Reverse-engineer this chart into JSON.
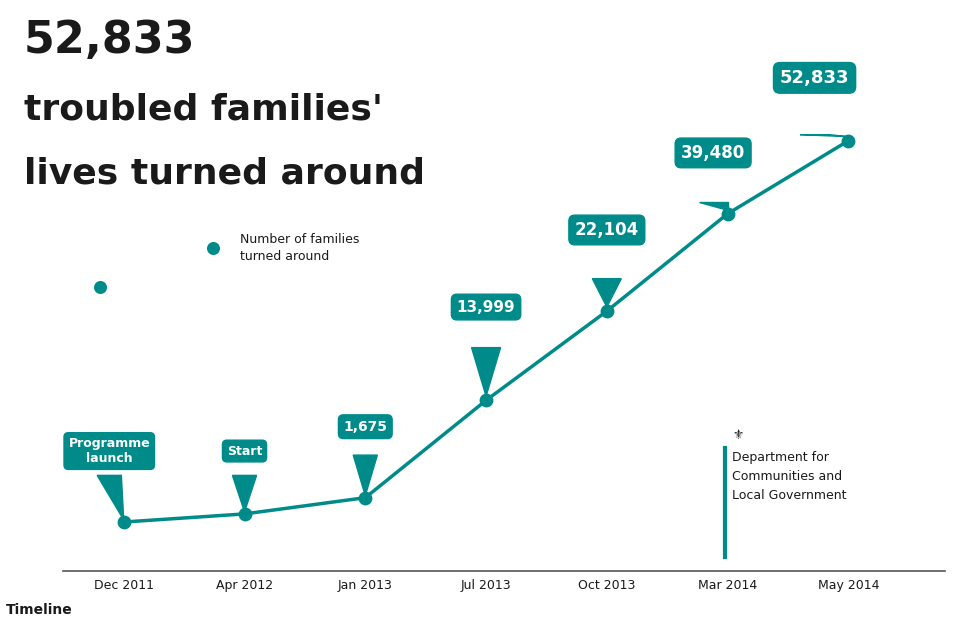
{
  "title_line1": "52,833",
  "title_line2": "troubled families'",
  "title_line3": "lives turned around",
  "teal_color": "#008B8B",
  "bg_color": "#ffffff",
  "text_color": "#1a1a1a",
  "timeline_label": "Timeline",
  "x_labels": [
    "Dec 2011",
    "Apr 2012",
    "Jan 2013",
    "Jul 2013",
    "Oct 2013",
    "Mar 2014",
    "May 2014"
  ],
  "x_positions": [
    0,
    1,
    2,
    3,
    4,
    5,
    6
  ],
  "y_values": [
    0.0,
    0.02,
    0.06,
    0.3,
    0.52,
    0.76,
    0.94
  ],
  "bubble_labels": [
    "Programme\nlaunch",
    "Start",
    "1,675",
    "13,999",
    "22,104",
    "39,480",
    "52,833"
  ],
  "bubble_font_sizes": [
    9,
    9,
    10,
    11,
    12,
    13,
    14
  ],
  "legend_text": "Number of families\nturned around",
  "dept_text": "Department for\nCommunities and\nLocal Government",
  "line_color": "#008B8B",
  "line_width": 2.5,
  "marker_size": 80
}
